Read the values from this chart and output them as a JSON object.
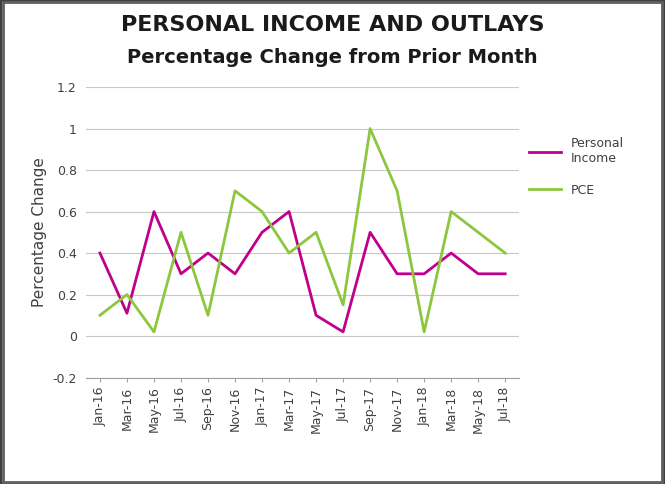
{
  "title_line1": "PERSONAL INCOME AND OUTLAYS",
  "title_line2": "Percentage Change from Prior Month",
  "ylabel": "Percentage Change",
  "ylim": [
    -0.2,
    1.2
  ],
  "yticks": [
    -0.2,
    0,
    0.2,
    0.4,
    0.6,
    0.8,
    1.0,
    1.2
  ],
  "categories": [
    "Jan-16",
    "Mar-16",
    "May-16",
    "Jul-16",
    "Sep-16",
    "Nov-16",
    "Jan-17",
    "Mar-17",
    "May-17",
    "Jul-17",
    "Sep-17",
    "Nov-17",
    "Jan-18",
    "Mar-18",
    "May-18",
    "Jul-18"
  ],
  "pi_values": [
    0.4,
    0.11,
    0.6,
    0.3,
    0.4,
    0.3,
    0.5,
    0.6,
    0.1,
    0.02,
    0.5,
    0.3,
    0.3,
    0.4,
    0.3,
    0.3
  ],
  "pce_values": [
    0.1,
    0.2,
    0.02,
    0.5,
    0.1,
    0.7,
    0.6,
    0.4,
    0.5,
    0.15,
    1.0,
    0.7,
    0.02,
    0.6,
    0.5,
    0.4
  ],
  "personal_income_color": "#c0008c",
  "pce_color": "#8dc63f",
  "background_color": "#ffffff",
  "grid_color": "#c8c8c8",
  "border_color": "#404040",
  "title1_fontsize": 16,
  "title2_fontsize": 14,
  "ylabel_fontsize": 11,
  "tick_fontsize": 9,
  "legend_fontsize": 9,
  "linewidth": 2.0
}
